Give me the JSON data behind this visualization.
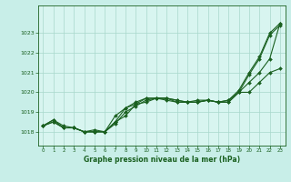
{
  "title": "Graphe pression niveau de la mer (hPa)",
  "background_color": "#c8eee8",
  "plot_bg_color": "#d8f5f0",
  "grid_color": "#a8d8cc",
  "line_color": "#1a6020",
  "marker_color": "#1a6020",
  "xlim": [
    -0.5,
    23.5
  ],
  "ylim": [
    1017.3,
    1024.4
  ],
  "yticks": [
    1018,
    1019,
    1020,
    1021,
    1022,
    1023
  ],
  "xticks": [
    0,
    1,
    2,
    3,
    4,
    5,
    6,
    7,
    8,
    9,
    10,
    11,
    12,
    13,
    14,
    15,
    16,
    17,
    18,
    19,
    20,
    21,
    22,
    23
  ],
  "series": [
    [
      1018.3,
      1018.6,
      1018.3,
      1018.2,
      1018.0,
      1018.1,
      1018.0,
      1018.8,
      1019.2,
      1019.5,
      1019.7,
      1019.7,
      1019.7,
      1019.6,
      1019.5,
      1019.5,
      1019.6,
      1019.5,
      1019.6,
      1020.1,
      1021.0,
      1021.8,
      1023.0,
      1023.5
    ],
    [
      1018.3,
      1018.5,
      1018.2,
      1018.2,
      1018.0,
      1018.0,
      1018.0,
      1018.4,
      1019.0,
      1019.3,
      1019.6,
      1019.7,
      1019.7,
      1019.5,
      1019.5,
      1019.6,
      1019.6,
      1019.5,
      1019.5,
      1020.0,
      1020.5,
      1021.0,
      1021.7,
      1023.5
    ],
    [
      1018.3,
      1018.5,
      1018.2,
      1018.2,
      1018.0,
      1018.0,
      1018.0,
      1018.5,
      1019.2,
      1019.4,
      1019.7,
      1019.7,
      1019.6,
      1019.5,
      1019.5,
      1019.5,
      1019.6,
      1019.5,
      1019.6,
      1020.0,
      1020.0,
      1020.5,
      1021.0,
      1021.2
    ],
    [
      1018.3,
      1018.6,
      1018.2,
      1018.2,
      1018.0,
      1018.0,
      1018.0,
      1018.5,
      1018.8,
      1019.4,
      1019.5,
      1019.7,
      1019.7,
      1019.6,
      1019.5,
      1019.5,
      1019.6,
      1019.5,
      1019.5,
      1020.0,
      1020.9,
      1021.7,
      1022.9,
      1023.4
    ]
  ]
}
